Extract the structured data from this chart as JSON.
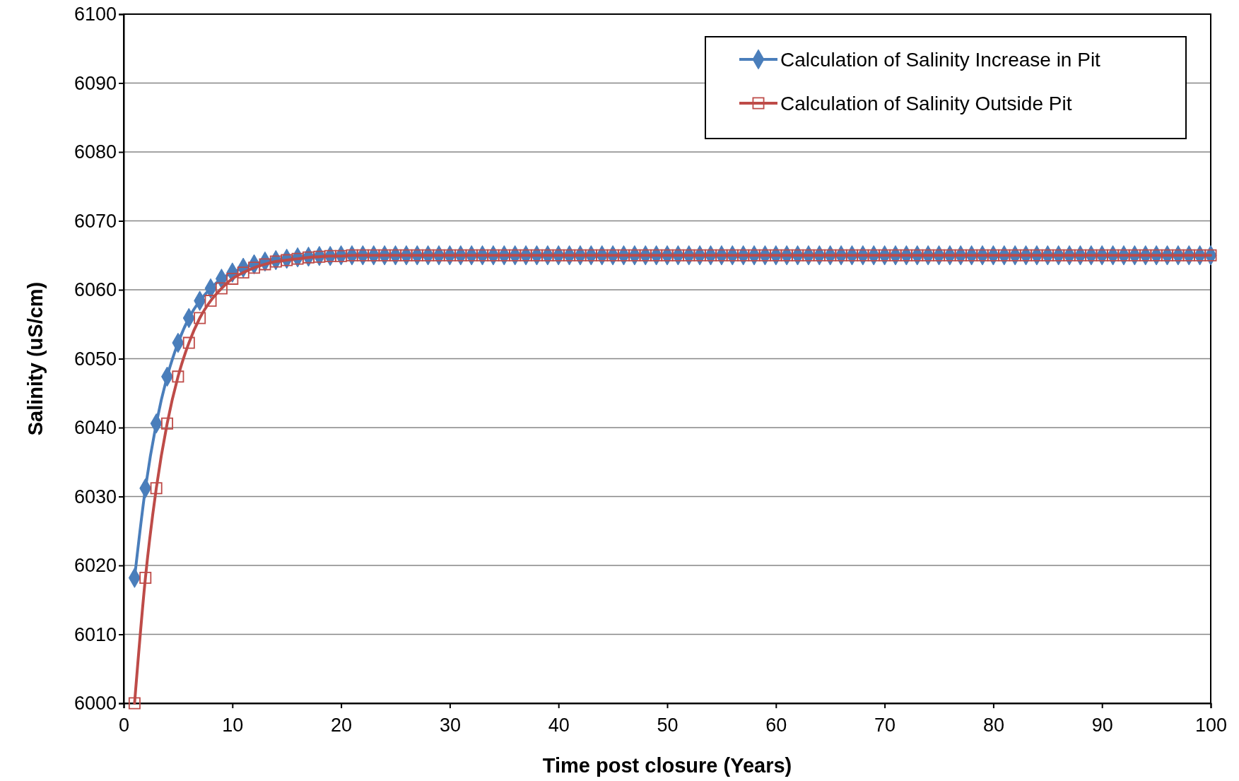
{
  "chart_data": {
    "type": "line",
    "xlabel": "Time post closure (Years)",
    "ylabel": "Salinity (uS/cm)",
    "x": [
      1,
      2,
      3,
      4,
      5,
      6,
      7,
      8,
      9,
      10,
      11,
      12,
      13,
      14,
      15,
      16,
      17,
      18,
      19,
      20,
      21,
      22,
      23,
      24,
      25,
      26,
      27,
      28,
      29,
      30,
      31,
      32,
      33,
      34,
      35,
      36,
      37,
      38,
      39,
      40,
      41,
      42,
      43,
      44,
      45,
      46,
      47,
      48,
      49,
      50,
      51,
      52,
      53,
      54,
      55,
      56,
      57,
      58,
      59,
      60,
      61,
      62,
      63,
      64,
      65,
      66,
      67,
      68,
      69,
      70,
      71,
      72,
      73,
      74,
      75,
      76,
      77,
      78,
      79,
      80,
      81,
      82,
      83,
      84,
      85,
      86,
      87,
      88,
      89,
      90,
      91,
      92,
      93,
      94,
      95,
      96,
      97,
      98,
      99,
      100
    ],
    "series": [
      {
        "name": "Calculation of Salinity Increase in Pit",
        "color": "#4a7ebb",
        "marker": "diamond",
        "values": [
          6018.2,
          6031.2,
          6040.6,
          6047.4,
          6052.3,
          6055.9,
          6058.4,
          6060.2,
          6061.6,
          6062.5,
          6063.2,
          6063.7,
          6064.1,
          6064.3,
          6064.5,
          6064.7,
          6064.8,
          6064.9,
          6064.9,
          6065,
          6065,
          6065,
          6065,
          6065,
          6065,
          6065,
          6065,
          6065,
          6065,
          6065,
          6065,
          6065,
          6065,
          6065,
          6065,
          6065,
          6065,
          6065,
          6065,
          6065,
          6065,
          6065,
          6065,
          6065,
          6065,
          6065,
          6065,
          6065,
          6065,
          6065,
          6065,
          6065,
          6065,
          6065,
          6065,
          6065,
          6065,
          6065,
          6065,
          6065,
          6065,
          6065,
          6065,
          6065,
          6065,
          6065,
          6065,
          6065,
          6065,
          6065,
          6065,
          6065,
          6065,
          6065,
          6065,
          6065,
          6065,
          6065,
          6065,
          6065,
          6065,
          6065,
          6065,
          6065,
          6065,
          6065,
          6065,
          6065,
          6065,
          6065,
          6065,
          6065,
          6065,
          6065,
          6065,
          6065,
          6065,
          6065,
          6065,
          6065
        ]
      },
      {
        "name": "Calculation of Salinity Outside Pit",
        "color": "#be4b48",
        "marker": "square",
        "values": [
          6000,
          6018.2,
          6031.2,
          6040.6,
          6047.4,
          6052.3,
          6055.9,
          6058.4,
          6060.2,
          6061.6,
          6062.5,
          6063.2,
          6063.7,
          6064.1,
          6064.3,
          6064.5,
          6064.7,
          6064.8,
          6064.9,
          6064.9,
          6065,
          6065,
          6065,
          6065,
          6065,
          6065,
          6065,
          6065,
          6065,
          6065,
          6065,
          6065,
          6065,
          6065,
          6065,
          6065,
          6065,
          6065,
          6065,
          6065,
          6065,
          6065,
          6065,
          6065,
          6065,
          6065,
          6065,
          6065,
          6065,
          6065,
          6065,
          6065,
          6065,
          6065,
          6065,
          6065,
          6065,
          6065,
          6065,
          6065,
          6065,
          6065,
          6065,
          6065,
          6065,
          6065,
          6065,
          6065,
          6065,
          6065,
          6065,
          6065,
          6065,
          6065,
          6065,
          6065,
          6065,
          6065,
          6065,
          6065,
          6065,
          6065,
          6065,
          6065,
          6065,
          6065,
          6065,
          6065,
          6065,
          6065,
          6065,
          6065,
          6065,
          6065,
          6065,
          6065,
          6065,
          6065,
          6065,
          6065
        ]
      }
    ],
    "xlim": [
      0,
      100
    ],
    "xticks": [
      0,
      10,
      20,
      30,
      40,
      50,
      60,
      70,
      80,
      90,
      100
    ],
    "ylim": [
      6000,
      6100
    ],
    "yticks": [
      6000,
      6010,
      6020,
      6030,
      6040,
      6050,
      6060,
      6070,
      6080,
      6090,
      6100
    ],
    "grid": "y",
    "legend": "top right",
    "line_style": "solid"
  }
}
